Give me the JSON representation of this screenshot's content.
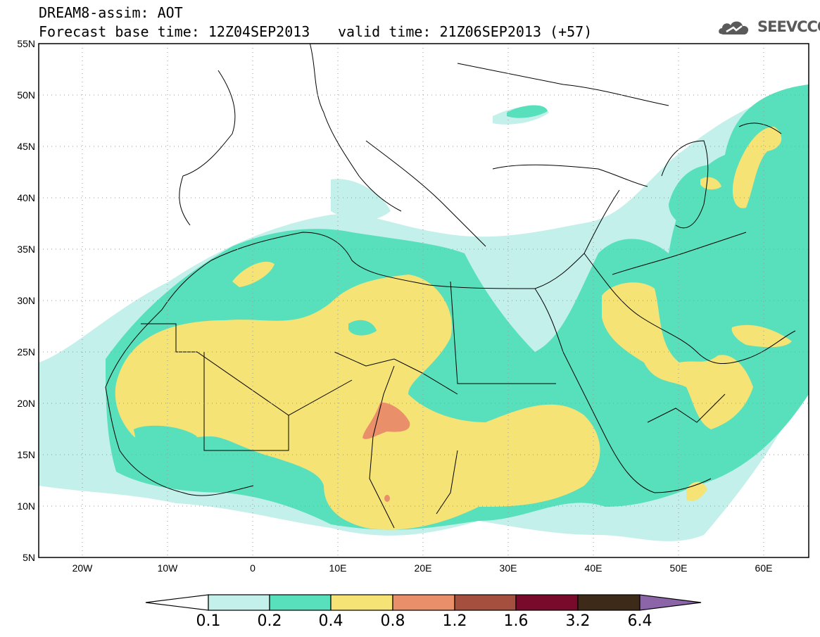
{
  "header": {
    "title": "DREAM8-assim: AOT",
    "base_time": "Forecast base time: 12Z04SEP2013",
    "valid_time": "valid time: 21Z06SEP2013 (+57)",
    "logo_text": "SEEVCCC"
  },
  "map": {
    "lon_range": [
      -25,
      65
    ],
    "lat_range": [
      5,
      55
    ],
    "lat_ticks": [
      "55N",
      "50N",
      "45N",
      "40N",
      "35N",
      "30N",
      "25N",
      "20N",
      "15N",
      "10N",
      "5N"
    ],
    "lon_ticks": [
      "20W",
      "10W",
      "0",
      "10E",
      "20E",
      "30E",
      "40E",
      "50E",
      "60E"
    ],
    "grid": "dotted"
  },
  "colorbar": {
    "labels": [
      "0.1",
      "0.2",
      "0.4",
      "0.8",
      "1.2",
      "1.6",
      "3.2",
      "6.4"
    ],
    "colors": [
      "#ffffff",
      "#c4f0eb",
      "#58e0bc",
      "#f5e376",
      "#e9906a",
      "#a5503e",
      "#7a0a2b",
      "#3d2a18",
      "#8c64a8"
    ]
  }
}
